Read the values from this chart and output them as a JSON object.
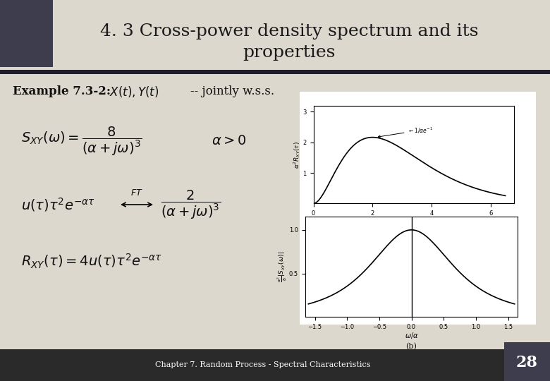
{
  "title_line1": "4. 3 Cross-power density spectrum and its",
  "title_line2": "properties",
  "title_fontsize": 18,
  "title_color": "#1a1a1a",
  "bg_color": "#dcd8ce",
  "header_bg": "#3d3d4d",
  "footer_text": "Chapter 7. Random Process - Spectral Characteristics",
  "footer_page": "28",
  "footer_bar_color": "#2a2a2a",
  "footer_page_bg": "#3d3d4d"
}
